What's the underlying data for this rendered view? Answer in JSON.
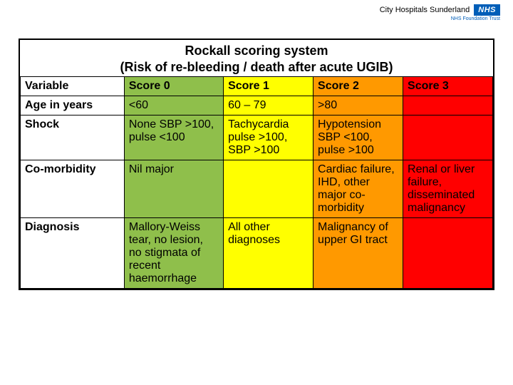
{
  "branding": {
    "org": "City Hospitals Sunderland",
    "badge": "NHS",
    "trust": "NHS Foundation Trust"
  },
  "title_line1": "Rockall scoring system",
  "title_line2": "(Risk of re-bleeding / death after acute UGIB)",
  "colors": {
    "score0": "#8fbf4b",
    "score1": "#ffff00",
    "score2": "#ff9900",
    "score3": "#ff0000"
  },
  "headers": {
    "variable": "Variable",
    "s0": "Score 0",
    "s1": "Score 1",
    "s2": "Score 2",
    "s3": "Score 3"
  },
  "rows": {
    "age": {
      "label": "Age in years",
      "s0": "<60",
      "s1": "60 – 79",
      "s2": ">80",
      "s3": ""
    },
    "shock": {
      "label": "Shock",
      "s0": "None SBP >100, pulse <100",
      "s1": "Tachycardia pulse >100, SBP >100",
      "s2": "Hypotension SBP <100, pulse >100",
      "s3": ""
    },
    "comorb": {
      "label": "Co-morbidity",
      "s0": "Nil major",
      "s1": "",
      "s2": "Cardiac failure, IHD, other major co-morbidity",
      "s3": "Renal or liver failure, disseminated malignancy"
    },
    "diag": {
      "label": "Diagnosis",
      "s0": "Mallory-Weiss tear, no lesion, no stigmata of recent haemorrhage",
      "s1": "All other diagnoses",
      "s2": "Malignancy of upper GI tract",
      "s3": ""
    }
  }
}
